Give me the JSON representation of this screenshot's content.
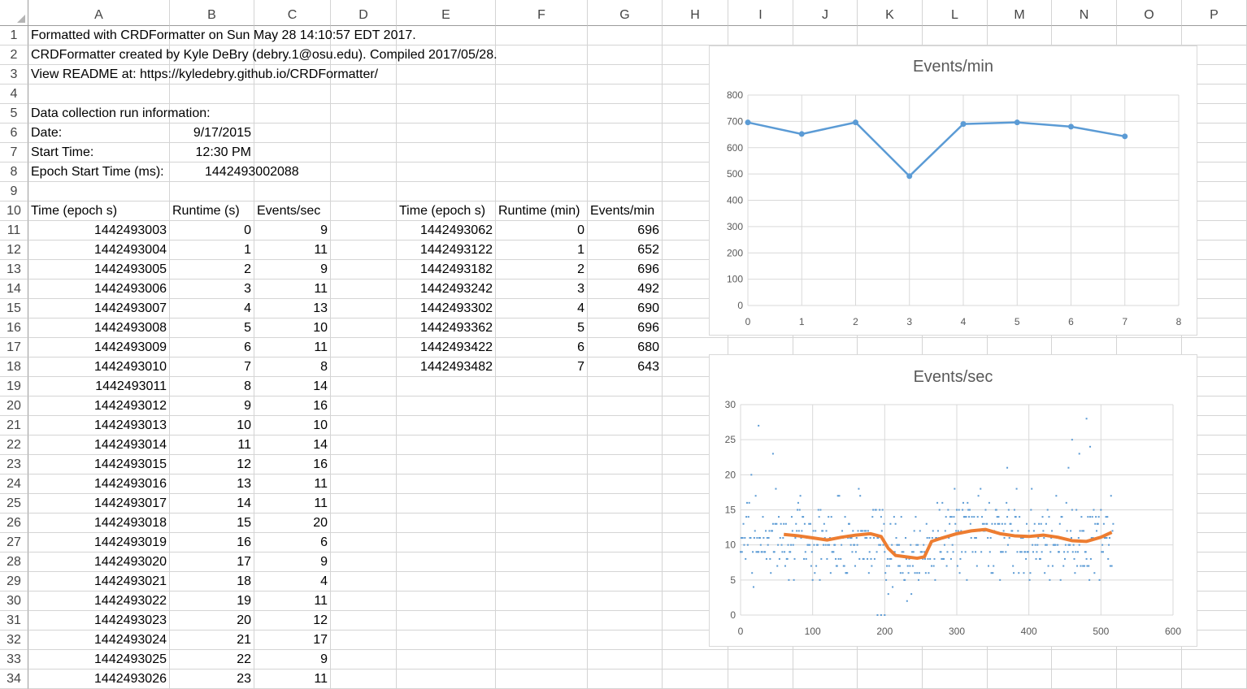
{
  "columns": [
    "A",
    "B",
    "C",
    "D",
    "E",
    "F",
    "G",
    "H",
    "I",
    "J",
    "K",
    "L",
    "M",
    "N",
    "O",
    "P"
  ],
  "rows": [
    "1",
    "2",
    "3",
    "4",
    "5",
    "6",
    "7",
    "8",
    "9",
    "10",
    "11",
    "12",
    "13",
    "14",
    "15",
    "16",
    "17",
    "18",
    "19",
    "20",
    "21",
    "22",
    "23",
    "24",
    "25",
    "26",
    "27",
    "28",
    "29",
    "30",
    "31",
    "32",
    "33",
    "34"
  ],
  "info": {
    "line1": "Formatted with CRDFormatter on Sun May 28 14:10:57 EDT 2017.",
    "line2": "CRDFormatter created by Kyle DeBry (debry.1@osu.edu). Compiled 2017/05/28.",
    "line3": "View README at: https://kyledebry.github.io/CRDFormatter/",
    "run_heading": "Data collection run information:",
    "date_label": "Date:",
    "date_value": "9/17/2015",
    "start_label": "Start Time:",
    "start_value": "12:30 PM",
    "epoch_label": "Epoch Start Time (ms):",
    "epoch_value": "1442493002088"
  },
  "sec_table": {
    "headers": [
      "Time (epoch s)",
      "Runtime (s)",
      "Events/sec"
    ],
    "rows": [
      [
        "1442493003",
        "0",
        "9"
      ],
      [
        "1442493004",
        "1",
        "11"
      ],
      [
        "1442493005",
        "2",
        "9"
      ],
      [
        "1442493006",
        "3",
        "11"
      ],
      [
        "1442493007",
        "4",
        "13"
      ],
      [
        "1442493008",
        "5",
        "10"
      ],
      [
        "1442493009",
        "6",
        "11"
      ],
      [
        "1442493010",
        "7",
        "8"
      ],
      [
        "1442493011",
        "8",
        "14"
      ],
      [
        "1442493012",
        "9",
        "16"
      ],
      [
        "1442493013",
        "10",
        "10"
      ],
      [
        "1442493014",
        "11",
        "14"
      ],
      [
        "1442493015",
        "12",
        "16"
      ],
      [
        "1442493016",
        "13",
        "11"
      ],
      [
        "1442493017",
        "14",
        "11"
      ],
      [
        "1442493018",
        "15",
        "20"
      ],
      [
        "1442493019",
        "16",
        "6"
      ],
      [
        "1442493020",
        "17",
        "9"
      ],
      [
        "1442493021",
        "18",
        "4"
      ],
      [
        "1442493022",
        "19",
        "11"
      ],
      [
        "1442493023",
        "20",
        "12"
      ],
      [
        "1442493024",
        "21",
        "17"
      ],
      [
        "1442493025",
        "22",
        "9"
      ],
      [
        "1442493026",
        "23",
        "11"
      ]
    ]
  },
  "min_table": {
    "headers": [
      "Time (epoch s)",
      "Runtime (min)",
      "Events/min"
    ],
    "rows": [
      [
        "1442493062",
        "0",
        "696"
      ],
      [
        "1442493122",
        "1",
        "652"
      ],
      [
        "1442493182",
        "2",
        "696"
      ],
      [
        "1442493242",
        "3",
        "492"
      ],
      [
        "1442493302",
        "4",
        "690"
      ],
      [
        "1442493362",
        "5",
        "696"
      ],
      [
        "1442493422",
        "6",
        "680"
      ],
      [
        "1442493482",
        "7",
        "643"
      ]
    ]
  },
  "chart_data": [
    {
      "type": "line",
      "title": "Events/min",
      "x": [
        0,
        1,
        2,
        3,
        4,
        5,
        6,
        7
      ],
      "series": [
        {
          "values": [
            696,
            652,
            696,
            492,
            690,
            696,
            680,
            643
          ],
          "color": "#5b9bd5"
        }
      ],
      "xlim": [
        0,
        8
      ],
      "ylim": [
        0,
        800
      ],
      "xticks": [
        0,
        1,
        2,
        3,
        4,
        5,
        6,
        7,
        8
      ],
      "yticks": [
        0,
        100,
        200,
        300,
        400,
        500,
        600,
        700,
        800
      ],
      "grid": true,
      "legend": "none"
    },
    {
      "type": "scatter",
      "title": "Events/sec",
      "xlim": [
        0,
        600
      ],
      "ylim": [
        0,
        30
      ],
      "xticks": [
        0,
        100,
        200,
        300,
        400,
        500,
        600
      ],
      "yticks": [
        0,
        5,
        10,
        15,
        20,
        25,
        30
      ],
      "grid": true,
      "legend": "none",
      "series": [
        {
          "kind": "points",
          "color": "#5b9bd5",
          "first_values": [
            9,
            11,
            9,
            11,
            13,
            10,
            11,
            8,
            14,
            16,
            10,
            14,
            16,
            11,
            11,
            20,
            6,
            9,
            4,
            11,
            12,
            17,
            9,
            11
          ],
          "outliers": [
            [
              25,
              27
            ],
            [
              45,
              23
            ],
            [
              370,
              21
            ],
            [
              460,
              25
            ],
            [
              470,
              23
            ],
            [
              480,
              28
            ],
            [
              485,
              24
            ],
            [
              455,
              21
            ],
            [
              195,
              0
            ],
            [
              200,
              0
            ],
            [
              190,
              0
            ]
          ]
        },
        {
          "kind": "moving-average",
          "color": "#ed7d31",
          "x": [
            60,
            80,
            100,
            120,
            140,
            160,
            180,
            195,
            205,
            215,
            230,
            245,
            255,
            265,
            280,
            300,
            320,
            340,
            360,
            380,
            400,
            420,
            440,
            460,
            480,
            500,
            515
          ],
          "values": [
            11.5,
            11.3,
            11.0,
            10.7,
            11.1,
            11.4,
            11.6,
            11.2,
            9.5,
            8.5,
            8.3,
            8.1,
            8.3,
            10.5,
            11.0,
            11.6,
            12.0,
            12.2,
            11.6,
            11.3,
            11.2,
            11.4,
            11.1,
            10.6,
            10.5,
            11.1,
            11.8
          ]
        }
      ]
    }
  ]
}
